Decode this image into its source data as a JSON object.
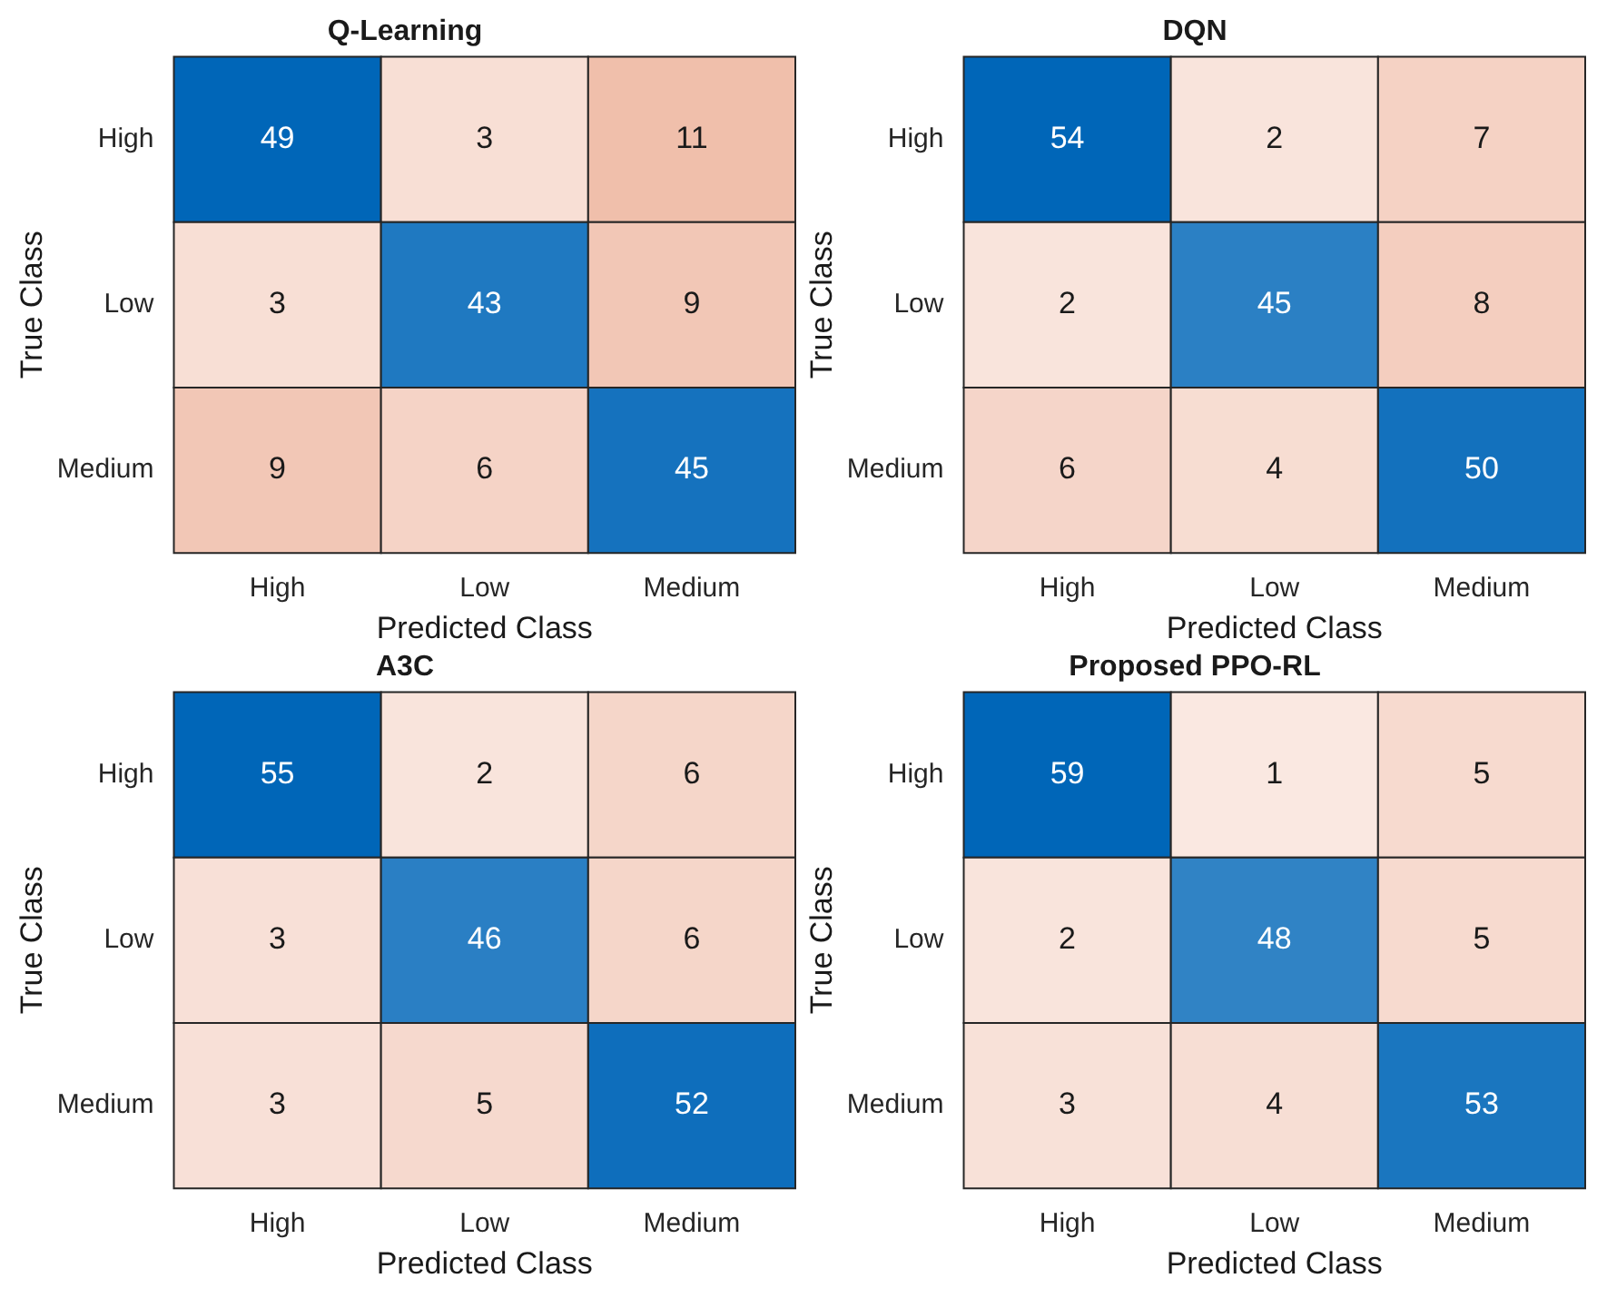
{
  "chart_data": [
    {
      "type": "heatmap",
      "data_labels": true,
      "title": "Q-Learning",
      "xlabel": "Predicted Class",
      "ylabel": "True Class",
      "categories": [
        "High",
        "Low",
        "Medium"
      ],
      "y_categories": [
        "High",
        "Low",
        "Medium"
      ],
      "cells": [
        [
          49,
          3,
          11
        ],
        [
          3,
          43,
          9
        ],
        [
          9,
          6,
          45
        ]
      ]
    },
    {
      "type": "heatmap",
      "data_labels": true,
      "title": "DQN",
      "xlabel": "Predicted Class",
      "ylabel": "True Class",
      "categories": [
        "High",
        "Low",
        "Medium"
      ],
      "y_categories": [
        "High",
        "Low",
        "Medium"
      ],
      "cells": [
        [
          54,
          2,
          7
        ],
        [
          2,
          45,
          8
        ],
        [
          6,
          4,
          50
        ]
      ]
    },
    {
      "type": "heatmap",
      "data_labels": true,
      "title": "A3C",
      "xlabel": "Predicted Class",
      "ylabel": "True Class",
      "categories": [
        "High",
        "Low",
        "Medium"
      ],
      "y_categories": [
        "High",
        "Low",
        "Medium"
      ],
      "cells": [
        [
          55,
          2,
          6
        ],
        [
          3,
          46,
          6
        ],
        [
          3,
          5,
          52
        ]
      ]
    },
    {
      "type": "heatmap",
      "data_labels": true,
      "title": "Proposed PPO-RL",
      "xlabel": "Predicted Class",
      "ylabel": "True Class",
      "categories": [
        "High",
        "Low",
        "Medium"
      ],
      "y_categories": [
        "High",
        "Low",
        "Medium"
      ],
      "cells": [
        [
          59,
          1,
          5
        ],
        [
          2,
          48,
          5
        ],
        [
          3,
          4,
          53
        ]
      ]
    }
  ]
}
